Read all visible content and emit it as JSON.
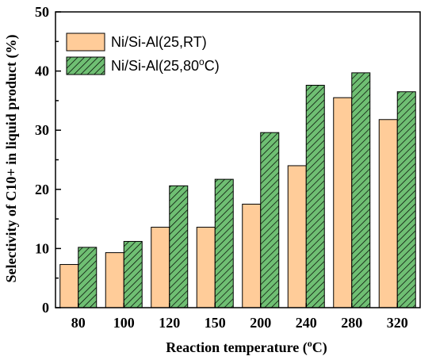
{
  "chart_data": {
    "type": "bar",
    "categories": [
      "80",
      "100",
      "120",
      "150",
      "200",
      "240",
      "280",
      "320"
    ],
    "series": [
      {
        "name": "Ni/Si-Al(25,RT)",
        "values": [
          7.3,
          9.3,
          13.6,
          13.6,
          17.5,
          24.0,
          35.5,
          31.8
        ],
        "color": "#ffcc99",
        "pattern": "solid"
      },
      {
        "name": "Ni/Si-Al(25,80°C)",
        "values": [
          10.2,
          11.2,
          20.6,
          21.7,
          29.6,
          37.6,
          39.7,
          36.5
        ],
        "color": "#6fbf73",
        "pattern": "diagonal-hatch"
      }
    ],
    "xlabel": "Reaction temperature (°C)",
    "xlabel_parts": {
      "main": "Reaction temperature (",
      "sup": "o",
      "end": "C)"
    },
    "ylabel": "Selectivity of  C10+ in liquid product (%)",
    "ylim": [
      0,
      50
    ],
    "yticks": [
      "0",
      "10",
      "20",
      "30",
      "40",
      "50"
    ],
    "grid": false,
    "legend_position": "top-left",
    "legend": [
      {
        "main": "Ni/Si-Al(25,RT)",
        "sup": "",
        "end": ""
      },
      {
        "main": "Ni/Si-Al(25,80",
        "sup": "o",
        "end": "C)"
      }
    ]
  }
}
